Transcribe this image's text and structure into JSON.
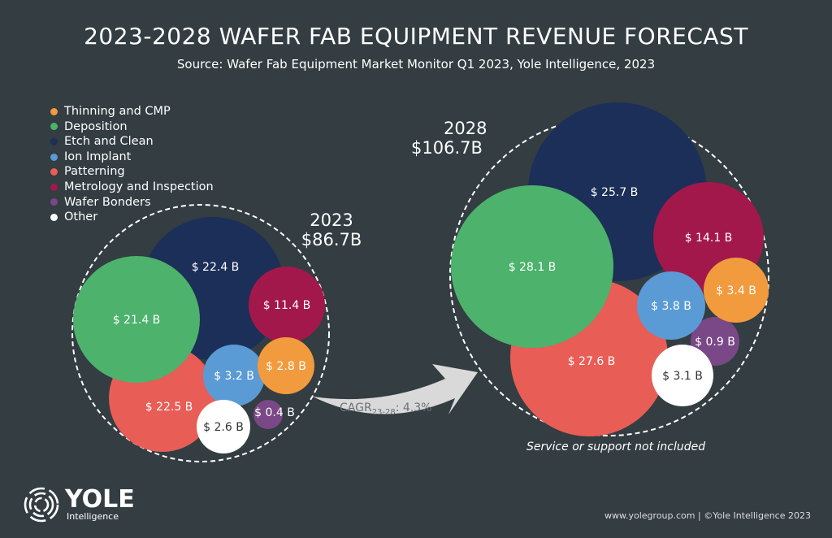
{
  "chart_data": {
    "type": "bubble",
    "title": "2023-2028 WAFER FAB EQUIPMENT REVENUE FORECAST",
    "subtitle": "Source: Wafer Fab Equipment Market Monitor Q1 2023, Yole Intelligence, 2023",
    "legend_placement": "top-left",
    "categories": [
      {
        "name": "Thinning and CMP",
        "color": "#f29b3e"
      },
      {
        "name": "Deposition",
        "color": "#4cb26c"
      },
      {
        "name": "Etch and Clean",
        "color": "#1c2f58"
      },
      {
        "name": "Ion Implant",
        "color": "#5b9bd5"
      },
      {
        "name": "Patterning",
        "color": "#e85d56"
      },
      {
        "name": "Metrology and Inspection",
        "color": "#a3184b"
      },
      {
        "name": "Wafer Bonders",
        "color": "#7a4787"
      },
      {
        "name": "Other",
        "color": "#ffffff"
      }
    ],
    "groups": [
      {
        "year": "2023",
        "total": "$86.7B",
        "values": {
          "Thinning and CMP": 2.8,
          "Deposition": 21.4,
          "Etch and Clean": 22.4,
          "Ion Implant": 3.2,
          "Patterning": 22.5,
          "Metrology and Inspection": 11.4,
          "Wafer Bonders": 0.4,
          "Other": 2.6
        },
        "labels": {
          "Thinning and CMP": "$ 2.8 B",
          "Deposition": "$ 21.4 B",
          "Etch and Clean": "$ 22.4 B",
          "Ion Implant": "$ 3.2 B",
          "Patterning": "$ 22.5 B",
          "Metrology and Inspection": "$ 11.4 B",
          "Wafer Bonders": "$ 0.4 B",
          "Other": "$ 2.6 B"
        }
      },
      {
        "year": "2028",
        "total": "$106.7B",
        "values": {
          "Thinning and CMP": 3.4,
          "Deposition": 28.1,
          "Etch and Clean": 25.7,
          "Ion Implant": 3.8,
          "Patterning": 27.6,
          "Metrology and Inspection": 14.1,
          "Wafer Bonders": 0.9,
          "Other": 3.1
        },
        "labels": {
          "Thinning and CMP": "$ 3.4 B",
          "Deposition": "$ 28.1 B",
          "Etch and Clean": "$ 25.7 B",
          "Ion Implant": "$ 3.8 B",
          "Patterning": "$ 27.6 B",
          "Metrology and Inspection": "$ 14.1 B",
          "Wafer Bonders": "$ 0.9 B",
          "Other": "$ 3.1 B"
        }
      }
    ],
    "cagr": {
      "label": "CAGR",
      "sub": "23-28",
      "value": ": 4.3%"
    },
    "note": "Service or support not included"
  },
  "footer": {
    "logo": "YOLE",
    "logo_sub": "Intelligence",
    "credit": "www.yolegroup.com | ©Yole Intelligence 2023"
  },
  "colors": {
    "background": "#333d42",
    "arrow": "#d9d9d9"
  }
}
